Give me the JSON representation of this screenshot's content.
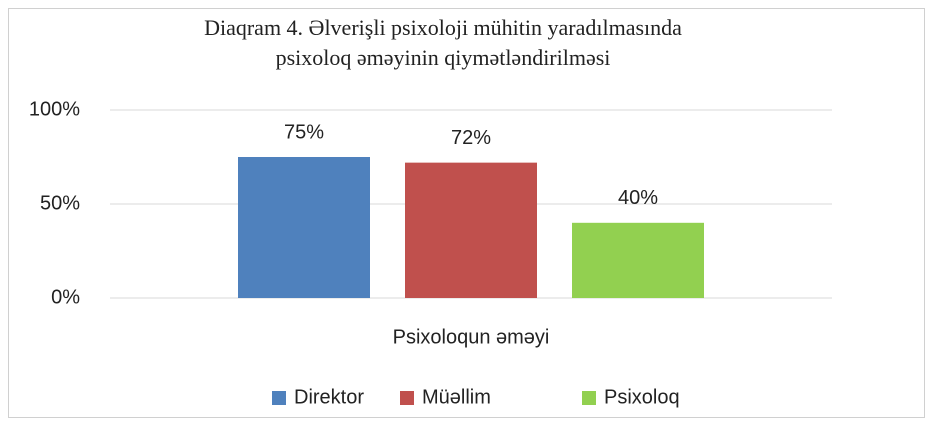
{
  "chart_data": {
    "type": "bar",
    "title": [
      "Diaqram 4. Əlverişli psixoloji mühitin yaradılmasında",
      "psixoloq əməyinin qiymətləndirilməsi"
    ],
    "categories": [
      "Psixoloqun əməyi"
    ],
    "series": [
      {
        "name": "Direktor",
        "color": "#4f81bd",
        "values": [
          75
        ],
        "value_labels": [
          "75%"
        ]
      },
      {
        "name": "Müəllim",
        "color": "#c0504d",
        "values": [
          72
        ],
        "value_labels": [
          "72%"
        ]
      },
      {
        "name": "Psixoloq",
        "color": "#92d050",
        "values": [
          40
        ],
        "value_labels": [
          "40%"
        ]
      }
    ],
    "ylim": [
      0,
      100
    ],
    "yticks": [
      {
        "value": 0,
        "label": "0%"
      },
      {
        "value": 50,
        "label": "50%"
      },
      {
        "value": 100,
        "label": "100%"
      }
    ],
    "grid": true,
    "legend": "bottom"
  }
}
